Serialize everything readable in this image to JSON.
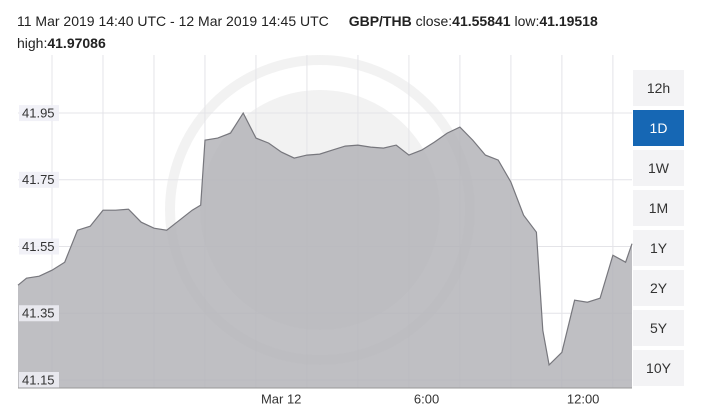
{
  "chart_data": {
    "type": "area",
    "title": "11 Mar 2019 14:40 UTC - 12 Mar 2019 14:45 UTC",
    "pair": "GBP/THB",
    "stats": [
      {
        "label": "close:",
        "value": 41.55841
      },
      {
        "label": "low:",
        "value": 41.19518
      },
      {
        "label": "high:",
        "value": 41.97086
      }
    ],
    "x": [
      "2019-03-11 14:40",
      "2019-03-11 15:00",
      "2019-03-11 15:30",
      "2019-03-11 16:00",
      "2019-03-11 16:30",
      "2019-03-11 17:00",
      "2019-03-11 17:30",
      "2019-03-11 18:00",
      "2019-03-11 18:30",
      "2019-03-11 19:00",
      "2019-03-11 19:30",
      "2019-03-11 20:00",
      "2019-03-11 20:30",
      "2019-03-11 21:00",
      "2019-03-11 21:30",
      "2019-03-11 21:50",
      "2019-03-11 22:00",
      "2019-03-11 22:30",
      "2019-03-11 23:00",
      "2019-03-11 23:30",
      "2019-03-12 00:00",
      "2019-03-12 00:30",
      "2019-03-12 01:00",
      "2019-03-12 01:30",
      "2019-03-12 02:00",
      "2019-03-12 02:30",
      "2019-03-12 03:00",
      "2019-03-12 03:30",
      "2019-03-12 04:00",
      "2019-03-12 04:30",
      "2019-03-12 05:00",
      "2019-03-12 05:30",
      "2019-03-12 06:00",
      "2019-03-12 06:30",
      "2019-03-12 07:00",
      "2019-03-12 07:30",
      "2019-03-12 08:00",
      "2019-03-12 08:30",
      "2019-03-12 09:00",
      "2019-03-12 09:30",
      "2019-03-12 10:00",
      "2019-03-12 10:30",
      "2019-03-12 11:00",
      "2019-03-12 11:15",
      "2019-03-12 11:30",
      "2019-03-12 12:00",
      "2019-03-12 12:30",
      "2019-03-12 13:00",
      "2019-03-12 13:30",
      "2019-03-12 14:00",
      "2019-03-12 14:30",
      "2019-03-12 14:45"
    ],
    "series": [
      {
        "name": "GBP/THB",
        "color": "#b4b4b9",
        "line_color": "#77777d",
        "values": [
          41.434,
          41.455,
          41.461,
          41.479,
          41.503,
          41.599,
          41.611,
          41.659,
          41.659,
          41.662,
          41.623,
          41.605,
          41.599,
          41.629,
          41.659,
          41.674,
          41.869,
          41.875,
          41.89,
          41.95,
          41.875,
          41.86,
          41.833,
          41.815,
          41.824,
          41.827,
          41.839,
          41.851,
          41.854,
          41.848,
          41.845,
          41.854,
          41.824,
          41.839,
          41.863,
          41.89,
          41.908,
          41.869,
          41.824,
          41.809,
          41.743,
          41.644,
          41.593,
          41.299,
          41.19518,
          41.233,
          41.389,
          41.383,
          41.395,
          41.524,
          41.503,
          41.55841
        ]
      }
    ],
    "xlim": [
      "2019-03-11 14:40",
      "2019-03-12 14:45"
    ],
    "xticks": [
      {
        "value": "2019-03-11 16:00",
        "label": null
      },
      {
        "value": "2019-03-11 18:00",
        "label": null
      },
      {
        "value": "2019-03-11 20:00",
        "label": null
      },
      {
        "value": "2019-03-11 22:00",
        "label": null
      },
      {
        "value": "2019-03-12 00:00",
        "label": "Mar 12"
      },
      {
        "value": "2019-03-12 02:00",
        "label": null
      },
      {
        "value": "2019-03-12 04:00",
        "label": null
      },
      {
        "value": "2019-03-12 06:00",
        "label": "6:00"
      },
      {
        "value": "2019-03-12 08:00",
        "label": null
      },
      {
        "value": "2019-03-12 10:00",
        "label": null
      },
      {
        "value": "2019-03-12 12:00",
        "label": "12:00"
      },
      {
        "value": "2019-03-12 14:00",
        "label": null
      }
    ],
    "ylim": [
      41.126,
      42.124
    ],
    "yticks": [
      41.15,
      41.35,
      41.55,
      41.75,
      41.95
    ],
    "grid": true
  },
  "range_buttons": {
    "options": [
      "12h",
      "1D",
      "1W",
      "1M",
      "1Y",
      "2Y",
      "5Y",
      "10Y"
    ],
    "selected": "1D"
  }
}
